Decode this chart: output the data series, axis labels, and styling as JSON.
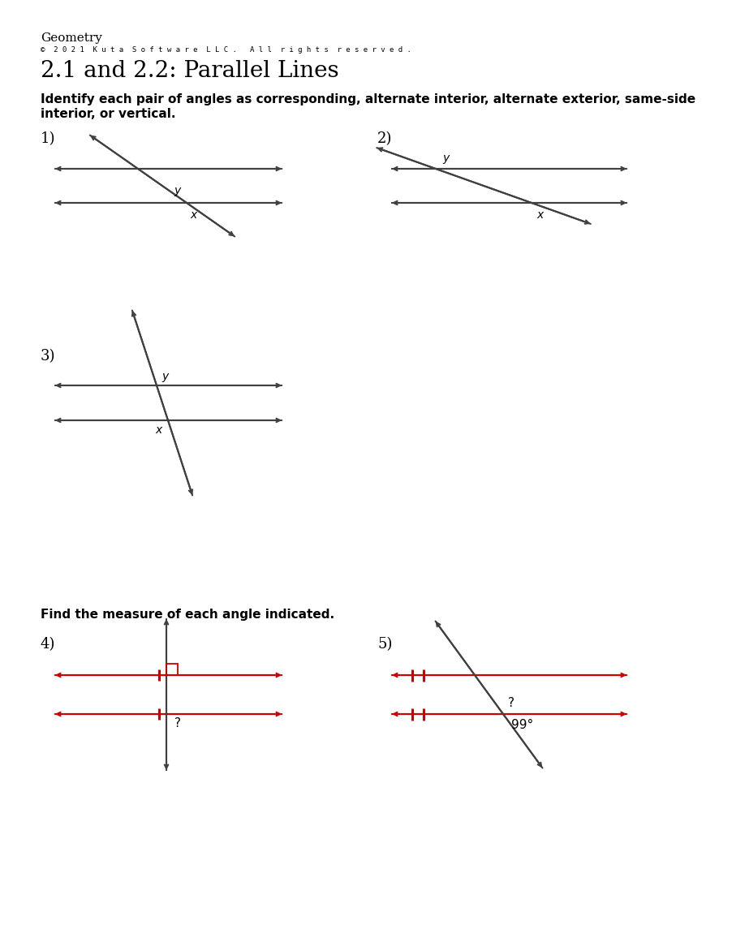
{
  "title_main": "Geometry",
  "title_copyright": "©  2 0 2 1  K u t a  S o f t w a r e  L L C .   A l l  r i g h t s  r e s e r v e d .",
  "title_sub": "2.1 and 2.2: Parallel Lines",
  "instructions1": "Identify each pair of angles as corresponding, alternate interior, alternate exterior, same-side",
  "instructions2": "interior, or vertical.",
  "instructions3": "Find the measure of each angle indicated.",
  "bg": "#ffffff",
  "lc": "#404040",
  "rc": "#cc0000",
  "tc": "#000000"
}
